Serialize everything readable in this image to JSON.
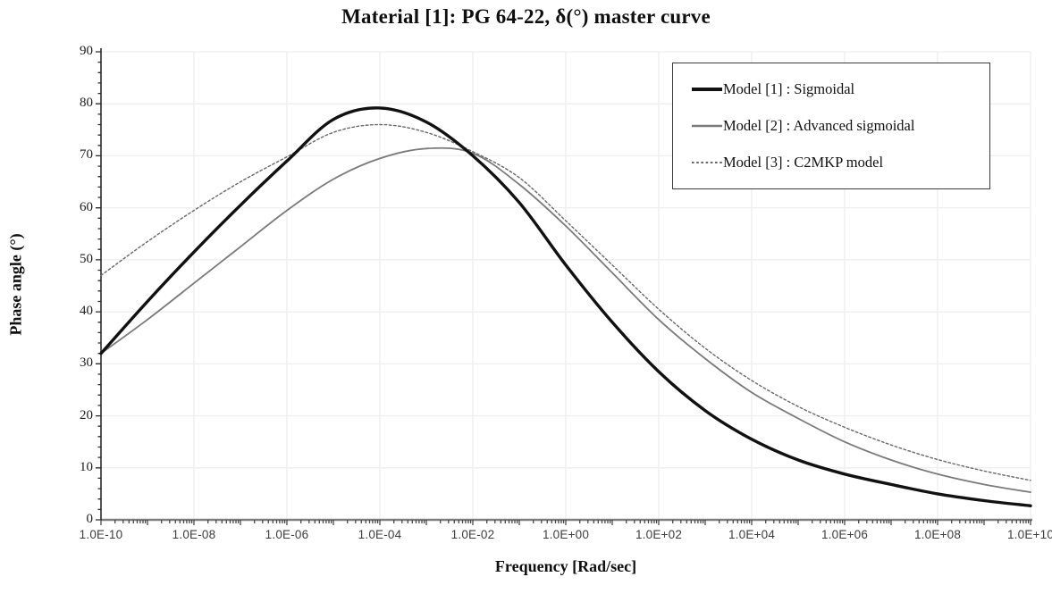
{
  "colors": {
    "background": "#ffffff",
    "grid": "#eeedeb",
    "x_axis_line": "#7f7f7f",
    "y_axis_line": "#2b2b2b",
    "tick_mark": "#4a4a4a",
    "x_tick_label": "#3d3d3d",
    "y_tick_label": "#1c1c1c",
    "text": "#0f0f0f"
  },
  "chart_data": {
    "type": "line",
    "title": "Material [1]: PG 64-22, δ(°) master curve",
    "xlabel": "Frequency [Rad/sec]",
    "ylabel": "Phase angle (°)",
    "x_scale": "log10",
    "xlim_exponents": [
      -10,
      10
    ],
    "ylim": [
      0,
      90
    ],
    "y_major_step": 10,
    "y_minor_step": 2,
    "x_minor_ticks": [
      2,
      3,
      4,
      5,
      6,
      7,
      8,
      9
    ],
    "grid": {
      "horizontal_step": 10,
      "vertical_step_decades": 2,
      "visible": true
    },
    "legend_position": "top-right",
    "x_ticks": [
      "1.0E-10",
      "1.0E-08",
      "1.0E-06",
      "1.0E-04",
      "1.0E-02",
      "1.0E+00",
      "1.0E+02",
      "1.0E+04",
      "1.0E+06",
      "1.0E+08",
      "1.0E+10"
    ],
    "x_tick_exponents": [
      -10,
      -8,
      -6,
      -4,
      -2,
      0,
      2,
      4,
      6,
      8,
      10
    ],
    "y_ticks": [
      0,
      10,
      20,
      30,
      40,
      50,
      60,
      70,
      80,
      90
    ],
    "x": [
      -10,
      -9,
      -8,
      -7,
      -6,
      -5,
      -4,
      -3,
      -2,
      -1,
      0,
      1,
      2,
      3,
      4,
      5,
      6,
      7,
      8,
      9,
      10
    ],
    "series": [
      {
        "name": "Model [1] : Sigmoidal",
        "style": "solid",
        "color": "#111111",
        "width": 3.4,
        "values": [
          32,
          42,
          51.5,
          60.5,
          69,
          77,
          79.2,
          76.5,
          70,
          61,
          49,
          38,
          28.5,
          21,
          15.5,
          11.5,
          8.8,
          6.8,
          5,
          3.7,
          2.7
        ]
      },
      {
        "name": "Model [2] : Advanced sigmoidal",
        "style": "solid",
        "color": "#7a7a7a",
        "width": 1.8,
        "values": [
          32,
          38.5,
          45.5,
          52.5,
          59.5,
          65.5,
          69.5,
          71.4,
          70.5,
          64.5,
          56.5,
          47.5,
          38.5,
          31,
          24.5,
          19.5,
          15,
          11.5,
          8.8,
          6.8,
          5.3
        ]
      },
      {
        "name": "Model [3] : C2MKP model",
        "style": "dotted",
        "color": "#686868",
        "width": 1.4,
        "values": [
          47,
          53.5,
          59.5,
          65,
          69.8,
          74.5,
          76,
          74.5,
          70.8,
          65.8,
          57.5,
          49,
          40.5,
          33,
          26.8,
          21.8,
          17.8,
          14.4,
          11.6,
          9.4,
          7.6
        ]
      }
    ]
  }
}
